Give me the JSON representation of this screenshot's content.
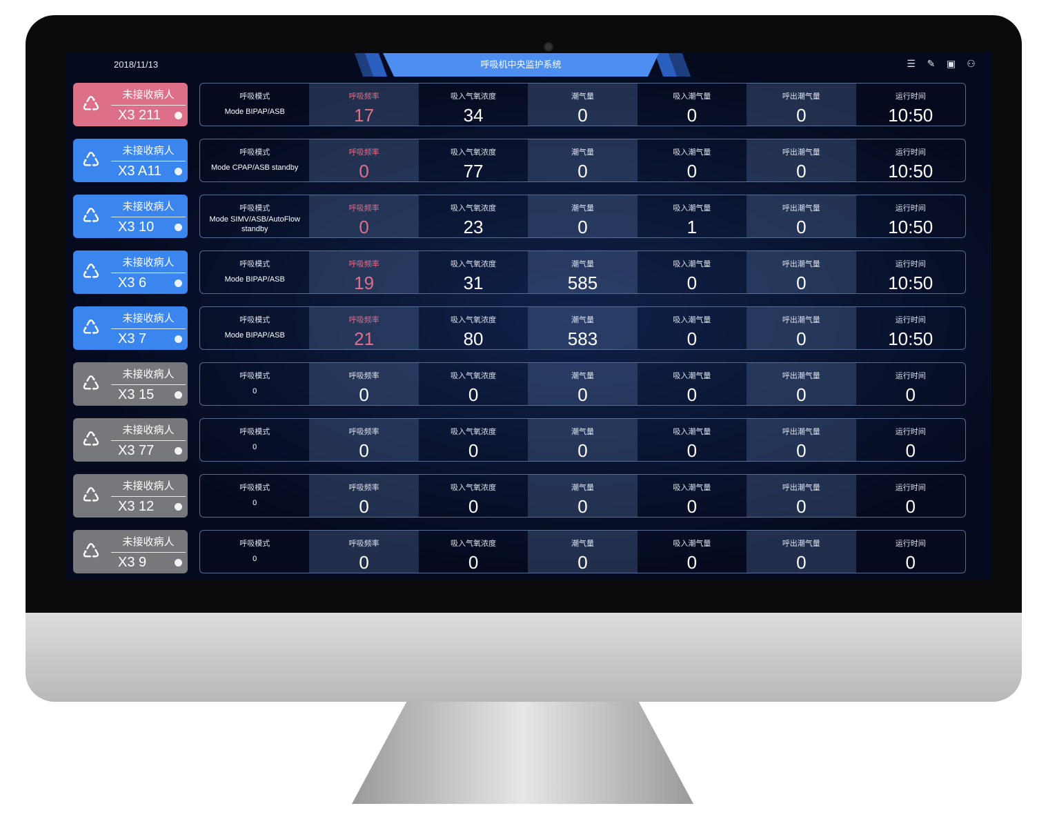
{
  "header": {
    "date": "2018/11/13",
    "title": "呼吸机中央监护系统",
    "icons": [
      "list-icon",
      "edit-icon",
      "layout-icon",
      "user-icon"
    ]
  },
  "colors": {
    "pink": "#dd6f88",
    "blue": "#3b86ee",
    "gray": "#77787c",
    "accent": "#e0708a"
  },
  "labels": [
    "呼吸模式",
    "呼吸频率",
    "吸入气氧浓度",
    "潮气量",
    "吸入潮气量",
    "呼出潮气量",
    "运行时间"
  ],
  "patients": [
    {
      "status": "未接收病人",
      "bed": "X3 211",
      "color": "pink",
      "mode": "Mode BIPAP/ASB",
      "values": [
        "17",
        "34",
        "0",
        "0",
        "0",
        "10:50"
      ],
      "active": true
    },
    {
      "status": "未接收病人",
      "bed": "X3 A11",
      "color": "blue",
      "mode": "Mode CPAP/ASB standby",
      "values": [
        "0",
        "77",
        "0",
        "0",
        "0",
        "10:50"
      ],
      "active": true
    },
    {
      "status": "未接收病人",
      "bed": "X3 10",
      "color": "blue",
      "mode": "Mode SIMV/ASB/AutoFlow standby",
      "values": [
        "0",
        "23",
        "0",
        "1",
        "0",
        "10:50"
      ],
      "active": true
    },
    {
      "status": "未接收病人",
      "bed": "X3 6",
      "color": "blue",
      "mode": "Mode BIPAP/ASB",
      "values": [
        "19",
        "31",
        "585",
        "0",
        "0",
        "10:50"
      ],
      "active": true
    },
    {
      "status": "未接收病人",
      "bed": "X3 7",
      "color": "blue",
      "mode": "Mode BIPAP/ASB",
      "values": [
        "21",
        "80",
        "583",
        "0",
        "0",
        "10:50"
      ],
      "active": true
    },
    {
      "status": "未接收病人",
      "bed": "X3 15",
      "color": "gray",
      "mode": "0",
      "values": [
        "0",
        "0",
        "0",
        "0",
        "0",
        "0"
      ],
      "active": false
    },
    {
      "status": "未接收病人",
      "bed": "X3 77",
      "color": "gray",
      "mode": "0",
      "values": [
        "0",
        "0",
        "0",
        "0",
        "0",
        "0"
      ],
      "active": false
    },
    {
      "status": "未接收病人",
      "bed": "X3 12",
      "color": "gray",
      "mode": "0",
      "values": [
        "0",
        "0",
        "0",
        "0",
        "0",
        "0"
      ],
      "active": false
    },
    {
      "status": "未接收病人",
      "bed": "X3 9",
      "color": "gray",
      "mode": "0",
      "values": [
        "0",
        "0",
        "0",
        "0",
        "0",
        "0"
      ],
      "active": false
    }
  ]
}
